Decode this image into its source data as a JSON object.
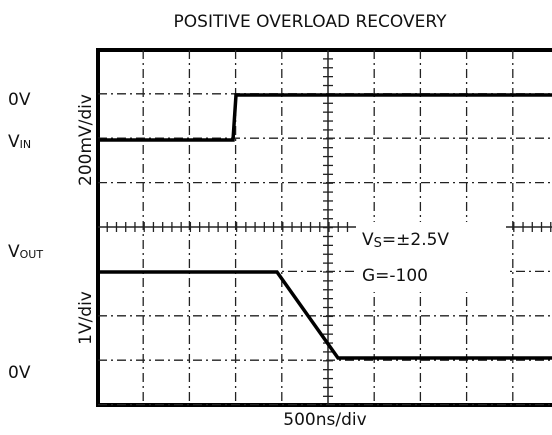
{
  "title": "POSITIVE OVERLOAD RECOVERY",
  "labels": {
    "vin_zero": "0V",
    "vin": {
      "main": "V",
      "sub": "IN"
    },
    "vin_scale": "200mV/div",
    "vout": {
      "main": "V",
      "sub": "OUT"
    },
    "vout_scale": "1V/div",
    "vout_zero": "0V",
    "time_scale": "500ns/div"
  },
  "annotations": {
    "supply": {
      "main": "V",
      "sub": "S",
      "rest": "=±2.5V"
    },
    "gain": "G=-100"
  }
}
